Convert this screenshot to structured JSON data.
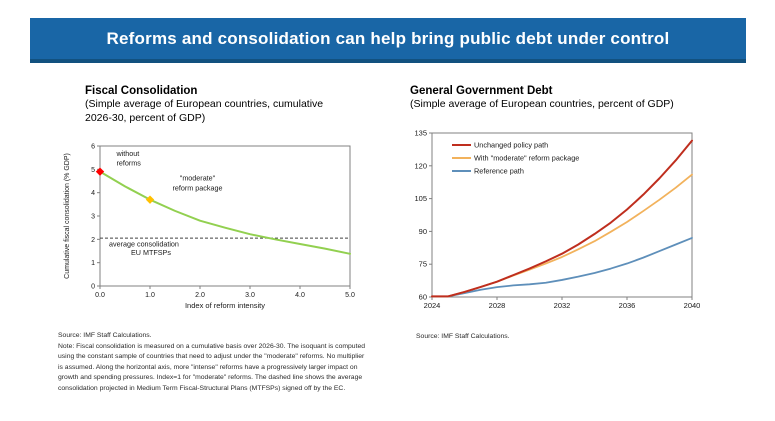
{
  "slide": {
    "title": "Reforms and consolidation can help bring public debt under control"
  },
  "colors": {
    "banner_bg": "#1966a6",
    "banner_edge": "#12517f",
    "axis": "#808080",
    "text": "#1a1a1a",
    "green": "#92d050",
    "red_marker": "#ff0000",
    "orange_marker": "#ffc000",
    "red_line": "#bf2e1e",
    "orange_line": "#f2b25c",
    "blue_line": "#5e8fba",
    "dashed": "#404040"
  },
  "left_panel": {
    "title": "Fiscal Consolidation",
    "subtitle_line1": "(Simple average of European countries, cumulative",
    "subtitle_line2": "2026-30, percent of GDP)",
    "notes": [
      "Source: IMF Staff Calculations.",
      "Note: Fiscal consolidation is measured on a cumulative basis over 2026-30. The isoquant is computed",
      "using the constant sample of countries that need to adjust under the \"moderate\" reforms. No multiplier",
      "is assumed. Along the horizontal axis, more \"intense\" reforms have a progressively larger impact on",
      "growth and spending pressures. Index=1 for \"moderate\" reforms. The dashed line shows the average",
      "consolidation projected in Medium Term Fiscal-Structural Plans (MTFSPs) signed off by the EC."
    ]
  },
  "right_panel": {
    "title": "General Government Debt",
    "subtitle_line1": "(Simple average of European countries, percent of GDP)",
    "source": "Source: IMF Staff Calculations."
  },
  "chart_data": [
    {
      "type": "line",
      "title": "Fiscal Consolidation",
      "xlabel": "Index of reform intensity",
      "ylabel": "Cumulative fiscal consolidation (% GDP)",
      "xlim": [
        0,
        5
      ],
      "ylim": [
        0,
        6
      ],
      "xticks": [
        {
          "v": 0,
          "label": "0.0"
        },
        {
          "v": 1,
          "label": "1.0"
        },
        {
          "v": 2,
          "label": "2.0"
        },
        {
          "v": 3,
          "label": "3.0"
        },
        {
          "v": 4,
          "label": "4.0"
        },
        {
          "v": 5,
          "label": "5.0"
        }
      ],
      "yticks": [
        {
          "v": 0,
          "label": "0"
        },
        {
          "v": 1,
          "label": "1"
        },
        {
          "v": 2,
          "label": "2"
        },
        {
          "v": 3,
          "label": "3"
        },
        {
          "v": 4,
          "label": "4"
        },
        {
          "v": 5,
          "label": "5"
        },
        {
          "v": 6,
          "label": "6"
        }
      ],
      "series": [
        {
          "name": "Consolidation isoquant",
          "color_key": "green",
          "width": 2,
          "x": [
            0,
            0.5,
            1,
            1.5,
            2,
            2.5,
            3,
            3.5,
            4,
            4.5,
            5
          ],
          "y": [
            4.9,
            4.27,
            3.7,
            3.22,
            2.8,
            2.5,
            2.22,
            2.0,
            1.8,
            1.6,
            1.38
          ]
        }
      ],
      "hline": {
        "y": 2.05,
        "style": "dashed",
        "color_key": "dashed"
      },
      "markers": [
        {
          "x": 0,
          "y": 4.9,
          "color_key": "red_marker",
          "name": "without reforms"
        },
        {
          "x": 1,
          "y": 3.7,
          "color_key": "orange_marker",
          "name": "moderate reform package"
        }
      ],
      "annotations": [
        {
          "x": 0.33,
          "y": 5.58,
          "text": "without",
          "anchor": "start"
        },
        {
          "x": 0.33,
          "y": 5.16,
          "text": "reforms",
          "anchor": "start"
        },
        {
          "x": 1.95,
          "y": 4.52,
          "text": "\"moderate\"",
          "anchor": "middle"
        },
        {
          "x": 1.95,
          "y": 4.1,
          "text": "reform package",
          "anchor": "middle"
        },
        {
          "x": 0.18,
          "y": 1.7,
          "text": "average consolidation",
          "anchor": "start"
        },
        {
          "x": 0.62,
          "y": 1.32,
          "text": "EU MTFSPs",
          "anchor": "start"
        }
      ]
    },
    {
      "type": "line",
      "title": "General Government Debt",
      "xlabel": "",
      "ylabel": "",
      "xlim": [
        2024,
        2040
      ],
      "ylim": [
        60,
        135
      ],
      "xticks": [
        {
          "v": 2024,
          "label": "2024"
        },
        {
          "v": 2028,
          "label": "2028"
        },
        {
          "v": 2032,
          "label": "2032"
        },
        {
          "v": 2036,
          "label": "2036"
        },
        {
          "v": 2040,
          "label": "2040"
        }
      ],
      "yticks": [
        {
          "v": 60,
          "label": "60"
        },
        {
          "v": 75,
          "label": "75"
        },
        {
          "v": 90,
          "label": "90"
        },
        {
          "v": 105,
          "label": "105"
        },
        {
          "v": 120,
          "label": "120"
        },
        {
          "v": 135,
          "label": "135"
        }
      ],
      "x": [
        2024,
        2025,
        2026,
        2027,
        2028,
        2029,
        2030,
        2031,
        2032,
        2033,
        2034,
        2035,
        2036,
        2037,
        2038,
        2039,
        2040
      ],
      "series": [
        {
          "name": "Unchanged policy path",
          "color_key": "red_line",
          "width": 2,
          "y": [
            60.3,
            60.3,
            62.3,
            64.6,
            67,
            70,
            73,
            76.3,
            79.8,
            84,
            88.8,
            94,
            100,
            106.8,
            114.3,
            122.5,
            131.5
          ]
        },
        {
          "name": "With \"moderate\" reform package",
          "color_key": "orange_line",
          "width": 1.8,
          "y": [
            60.3,
            60.3,
            62.3,
            64.6,
            67,
            69.8,
            72.5,
            75.3,
            78.3,
            81.8,
            85.5,
            89.8,
            94.3,
            99.3,
            104.5,
            110,
            116
          ]
        },
        {
          "name": "Reference path",
          "color_key": "blue_line",
          "width": 1.8,
          "y": [
            60.3,
            60.3,
            61.8,
            63.3,
            64.5,
            65.3,
            65.8,
            66.5,
            67.8,
            69.3,
            71,
            73,
            75.3,
            78,
            81,
            84,
            87
          ]
        }
      ],
      "legend": {
        "items": [
          {
            "label": "Unchanged policy path",
            "color_key": "red_line"
          },
          {
            "label": "With \"moderate\" reform package",
            "color_key": "orange_line"
          },
          {
            "label": "Reference path",
            "color_key": "blue_line"
          }
        ]
      }
    }
  ]
}
